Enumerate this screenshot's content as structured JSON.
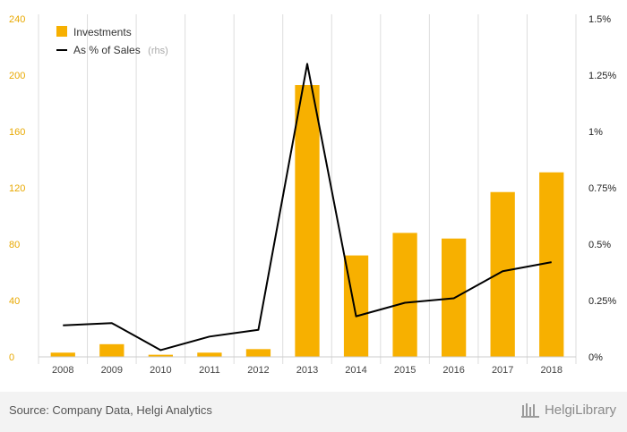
{
  "chart_data": {
    "type": "bar",
    "categories": [
      "2008",
      "2009",
      "2010",
      "2011",
      "2012",
      "2013",
      "2014",
      "2015",
      "2016",
      "2017",
      "2018"
    ],
    "series": [
      {
        "name": "Investments",
        "axis": "left",
        "type": "bar",
        "values": [
          3,
          9,
          1.5,
          3,
          5.5,
          193,
          72,
          88,
          84,
          117,
          131
        ]
      },
      {
        "name": "As % of Sales",
        "axis": "right",
        "type": "line",
        "values": [
          0.0014,
          0.0015,
          0.0003,
          0.0009,
          0.0012,
          0.013,
          0.0018,
          0.0024,
          0.0026,
          0.0038,
          0.0042
        ]
      }
    ],
    "y_left": {
      "ticks": [
        "0",
        "40",
        "80",
        "120",
        "160",
        "200",
        "240"
      ],
      "ylim": [
        0,
        240
      ]
    },
    "y_right": {
      "ticks": [
        "0%",
        "0.25%",
        "0.5%",
        "0.75%",
        "1%",
        "1.25%",
        "1.5%"
      ],
      "ylim": [
        0,
        0.015
      ]
    },
    "legend": {
      "position": "top-left",
      "rhs_suffix": "(rhs)"
    },
    "grid": "vertical",
    "colors": {
      "bar": "#f7b000",
      "line": "#000000",
      "left_ticks": "#e8a800",
      "grid": "#dddddd"
    }
  },
  "footer": {
    "source": "Source: Company Data, Helgi Analytics",
    "logo_text": "HelgiLibrary"
  }
}
